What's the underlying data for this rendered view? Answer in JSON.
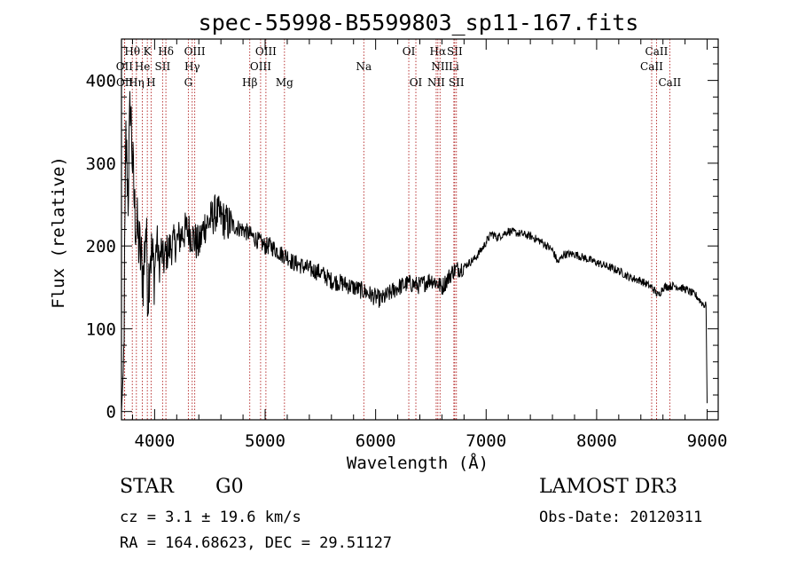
{
  "chart_data": {
    "type": "line",
    "title": "spec-55998-B5599803_sp11-167.fits",
    "xlabel": "Wavelength (Å)",
    "ylabel": "Flux (relative)",
    "xlim": [
      3700,
      9100
    ],
    "ylim": [
      -10,
      450
    ],
    "xticks": [
      4000,
      5000,
      6000,
      7000,
      8000,
      9000
    ],
    "yticks": [
      0,
      100,
      200,
      300,
      400
    ],
    "series": [
      {
        "name": "flux",
        "x": [
          3700,
          3720,
          3740,
          3760,
          3780,
          3800,
          3820,
          3840,
          3860,
          3880,
          3900,
          3920,
          3940,
          3960,
          3980,
          4000,
          4020,
          4040,
          4060,
          4080,
          4100,
          4150,
          4200,
          4250,
          4300,
          4350,
          4400,
          4450,
          4500,
          4550,
          4600,
          4650,
          4700,
          4750,
          4800,
          4850,
          4900,
          4950,
          5000,
          5050,
          5100,
          5150,
          5200,
          5250,
          5300,
          5400,
          5500,
          5600,
          5700,
          5800,
          5900,
          6000,
          6050,
          6100,
          6200,
          6300,
          6400,
          6500,
          6560,
          6600,
          6700,
          6800,
          6900,
          6980,
          7000,
          7050,
          7100,
          7200,
          7300,
          7400,
          7500,
          7600,
          7650,
          7700,
          7800,
          7900,
          8000,
          8100,
          8200,
          8300,
          8400,
          8500,
          8560,
          8600,
          8700,
          8800,
          8900,
          8960,
          8990,
          9000
        ],
        "values": [
          0,
          60,
          330,
          260,
          380,
          300,
          240,
          220,
          200,
          180,
          160,
          230,
          140,
          200,
          180,
          170,
          210,
          175,
          195,
          180,
          190,
          200,
          205,
          215,
          220,
          210,
          200,
          225,
          230,
          240,
          235,
          228,
          225,
          222,
          220,
          215,
          210,
          205,
          200,
          200,
          195,
          190,
          188,
          180,
          178,
          172,
          168,
          158,
          155,
          150,
          145,
          138,
          135,
          140,
          150,
          155,
          152,
          160,
          155,
          150,
          170,
          175,
          185,
          200,
          205,
          215,
          210,
          218,
          215,
          212,
          205,
          195,
          180,
          190,
          190,
          185,
          180,
          175,
          170,
          162,
          158,
          150,
          140,
          150,
          152,
          148,
          140,
          130,
          128,
          10
        ]
      }
    ],
    "spectral_lines": {
      "top": [
        {
          "label": "Hθ",
          "wl": 3798
        },
        {
          "label": "K",
          "wl": 3934
        },
        {
          "label": "Hδ",
          "wl": 4102
        },
        {
          "label": "OIII",
          "wl": 4363
        },
        {
          "label": "OIII",
          "wl": 5007
        },
        {
          "label": "OI",
          "wl": 6300
        },
        {
          "label": "Hα",
          "wl": 6563
        },
        {
          "label": "SII",
          "wl": 6716
        },
        {
          "label": "CaII",
          "wl": 8542
        }
      ],
      "middle": [
        {
          "label": "OII",
          "wl": 3727
        },
        {
          "label": "He",
          "wl": 3889
        },
        {
          "label": "SII",
          "wl": 4072
        },
        {
          "label": "Hγ",
          "wl": 4340
        },
        {
          "label": "OIII",
          "wl": 4959
        },
        {
          "label": "Na",
          "wl": 5893
        },
        {
          "label": "NII",
          "wl": 6583
        },
        {
          "label": "Li",
          "wl": 6708
        },
        {
          "label": "CaII",
          "wl": 8498
        }
      ],
      "bottom": [
        {
          "label": "OII",
          "wl": 3729
        },
        {
          "label": "Hη",
          "wl": 3835
        },
        {
          "label": "H",
          "wl": 3968
        },
        {
          "label": "G",
          "wl": 4305
        },
        {
          "label": "Hβ",
          "wl": 4861
        },
        {
          "label": "Mg",
          "wl": 5175
        },
        {
          "label": "OI",
          "wl": 6364
        },
        {
          "label": "NII",
          "wl": 6548
        },
        {
          "label": "SII",
          "wl": 6731
        },
        {
          "label": "CaII",
          "wl": 8662
        }
      ]
    }
  },
  "info": {
    "object_class": "STAR",
    "subclass": "G0",
    "survey": "LAMOST DR3",
    "redshift_text": "cz = 3.1 ± 19.6 km/s",
    "obs_date": "Obs-Date: 20120311",
    "coords": "RA = 164.68623, DEC =  29.51127"
  },
  "colors": {
    "axis": "#000000",
    "spectrum": "#000000",
    "marker_line": "#b22222"
  }
}
